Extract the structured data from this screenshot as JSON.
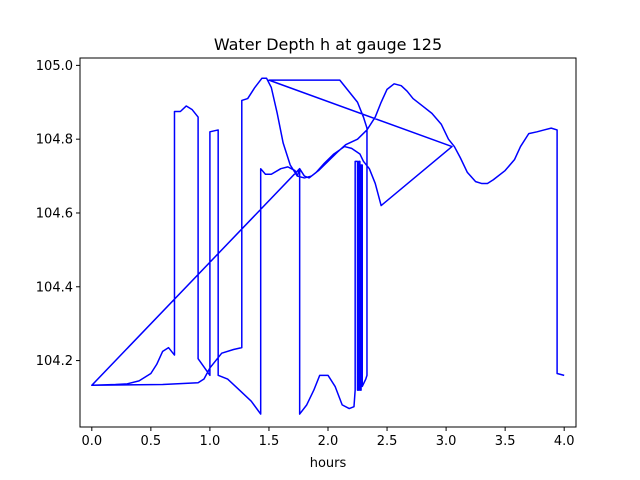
{
  "chart_data": {
    "type": "line",
    "title": "Water Depth h at gauge 125",
    "xlabel": "hours",
    "ylabel": "",
    "xlim": [
      -0.1,
      4.1
    ],
    "ylim": [
      104.02,
      105.02
    ],
    "xticks": [
      0.0,
      0.5,
      1.0,
      1.5,
      2.0,
      2.5,
      3.0,
      3.5,
      4.0
    ],
    "xtick_labels": [
      "0.0",
      "0.5",
      "1.0",
      "1.5",
      "2.0",
      "2.5",
      "3.0",
      "3.5",
      "4.0"
    ],
    "yticks": [
      104.2,
      104.4,
      104.6,
      104.8,
      105.0
    ],
    "ytick_labels": [
      "104.2",
      "104.4",
      "104.6",
      "104.8",
      "105.0"
    ],
    "grid": false,
    "series": [
      {
        "color": "#0000ff",
        "points": [
          [
            0.0,
            104.133
          ],
          [
            0.1,
            104.134
          ],
          [
            0.2,
            104.135
          ],
          [
            0.3,
            104.137
          ],
          [
            0.4,
            104.145
          ],
          [
            0.5,
            104.165
          ],
          [
            0.55,
            104.19
          ],
          [
            0.6,
            104.225
          ],
          [
            0.65,
            104.235
          ],
          [
            0.7,
            104.215
          ],
          [
            0.7,
            104.875
          ],
          [
            0.75,
            104.875
          ],
          [
            0.8,
            104.89
          ],
          [
            0.85,
            104.88
          ],
          [
            0.9,
            104.86
          ],
          [
            0.9,
            104.205
          ],
          [
            1.0,
            104.16
          ],
          [
            1.0,
            104.82
          ],
          [
            1.07,
            104.825
          ],
          [
            1.07,
            104.16
          ],
          [
            1.15,
            104.15
          ],
          [
            1.25,
            104.12
          ],
          [
            1.35,
            104.09
          ],
          [
            1.43,
            104.055
          ],
          [
            1.43,
            104.72
          ],
          [
            1.47,
            104.705
          ],
          [
            1.52,
            104.705
          ],
          [
            1.6,
            104.72
          ],
          [
            1.66,
            104.725
          ],
          [
            1.72,
            104.715
          ],
          [
            1.74,
            104.7
          ],
          [
            1.76,
            104.72
          ],
          [
            1.76,
            104.055
          ],
          [
            1.82,
            104.08
          ],
          [
            1.88,
            104.12
          ],
          [
            1.93,
            104.16
          ],
          [
            2.0,
            104.16
          ],
          [
            2.06,
            104.13
          ],
          [
            2.12,
            104.08
          ],
          [
            2.18,
            104.07
          ],
          [
            2.22,
            104.075
          ],
          [
            2.23,
            104.12
          ],
          [
            2.23,
            104.74
          ],
          [
            2.25,
            104.74
          ],
          [
            2.25,
            104.12
          ],
          [
            2.26,
            104.12
          ],
          [
            2.26,
            104.74
          ],
          [
            2.27,
            104.74
          ],
          [
            2.27,
            104.12
          ],
          [
            2.28,
            104.12
          ],
          [
            2.28,
            104.73
          ],
          [
            2.29,
            104.73
          ],
          [
            2.29,
            104.13
          ],
          [
            2.32,
            104.15
          ],
          [
            2.33,
            104.16
          ],
          [
            2.33,
            104.83
          ],
          [
            2.3,
            104.86
          ],
          [
            2.25,
            104.9
          ],
          [
            2.1,
            104.96
          ],
          [
            1.8,
            104.96
          ],
          [
            1.5,
            104.96
          ],
          [
            1.5,
            104.96
          ],
          [
            3.05,
            104.78
          ],
          [
            2.45,
            104.62
          ],
          [
            2.4,
            104.68
          ],
          [
            2.35,
            104.72
          ],
          [
            2.3,
            104.74
          ],
          [
            2.27,
            104.76
          ],
          [
            2.2,
            104.775
          ],
          [
            2.14,
            104.78
          ],
          [
            2.05,
            104.76
          ],
          [
            1.97,
            104.735
          ],
          [
            1.9,
            104.71
          ],
          [
            1.84,
            104.695
          ],
          [
            1.8,
            104.7
          ],
          [
            1.76,
            104.72
          ],
          [
            1.76,
            104.72
          ],
          [
            0.0,
            104.133
          ],
          [
            0.0,
            104.133
          ],
          [
            0.3,
            104.134
          ],
          [
            0.6,
            104.135
          ],
          [
            0.9,
            104.14
          ],
          [
            0.95,
            104.15
          ],
          [
            1.0,
            104.18
          ],
          [
            1.05,
            104.2
          ],
          [
            1.1,
            104.22
          ],
          [
            1.2,
            104.23
          ],
          [
            1.27,
            104.235
          ],
          [
            1.27,
            104.905
          ],
          [
            1.32,
            104.91
          ],
          [
            1.38,
            104.94
          ],
          [
            1.44,
            104.965
          ],
          [
            1.48,
            104.965
          ],
          [
            1.52,
            104.94
          ],
          [
            1.57,
            104.87
          ],
          [
            1.62,
            104.79
          ],
          [
            1.68,
            104.73
          ],
          [
            1.74,
            104.7
          ],
          [
            1.8,
            104.695
          ],
          [
            1.86,
            104.7
          ],
          [
            1.92,
            104.715
          ],
          [
            2.0,
            104.74
          ],
          [
            2.08,
            104.765
          ],
          [
            2.15,
            104.785
          ],
          [
            2.25,
            104.8
          ],
          [
            2.33,
            104.825
          ],
          [
            2.4,
            104.86
          ],
          [
            2.45,
            104.9
          ],
          [
            2.5,
            104.935
          ],
          [
            2.56,
            104.95
          ],
          [
            2.62,
            104.945
          ],
          [
            2.67,
            104.93
          ],
          [
            2.72,
            104.91
          ],
          [
            2.8,
            104.89
          ],
          [
            2.88,
            104.87
          ],
          [
            2.96,
            104.84
          ],
          [
            3.02,
            104.8
          ],
          [
            3.07,
            104.78
          ],
          [
            3.12,
            104.75
          ],
          [
            3.18,
            104.71
          ],
          [
            3.25,
            104.685
          ],
          [
            3.3,
            104.68
          ],
          [
            3.35,
            104.68
          ],
          [
            3.4,
            104.69
          ],
          [
            3.5,
            104.715
          ],
          [
            3.58,
            104.745
          ],
          [
            3.63,
            104.78
          ],
          [
            3.7,
            104.815
          ],
          [
            3.77,
            104.82
          ],
          [
            3.83,
            104.825
          ],
          [
            3.89,
            104.83
          ],
          [
            3.94,
            104.825
          ],
          [
            3.94,
            104.165
          ],
          [
            4.0,
            104.16
          ]
        ]
      }
    ]
  }
}
